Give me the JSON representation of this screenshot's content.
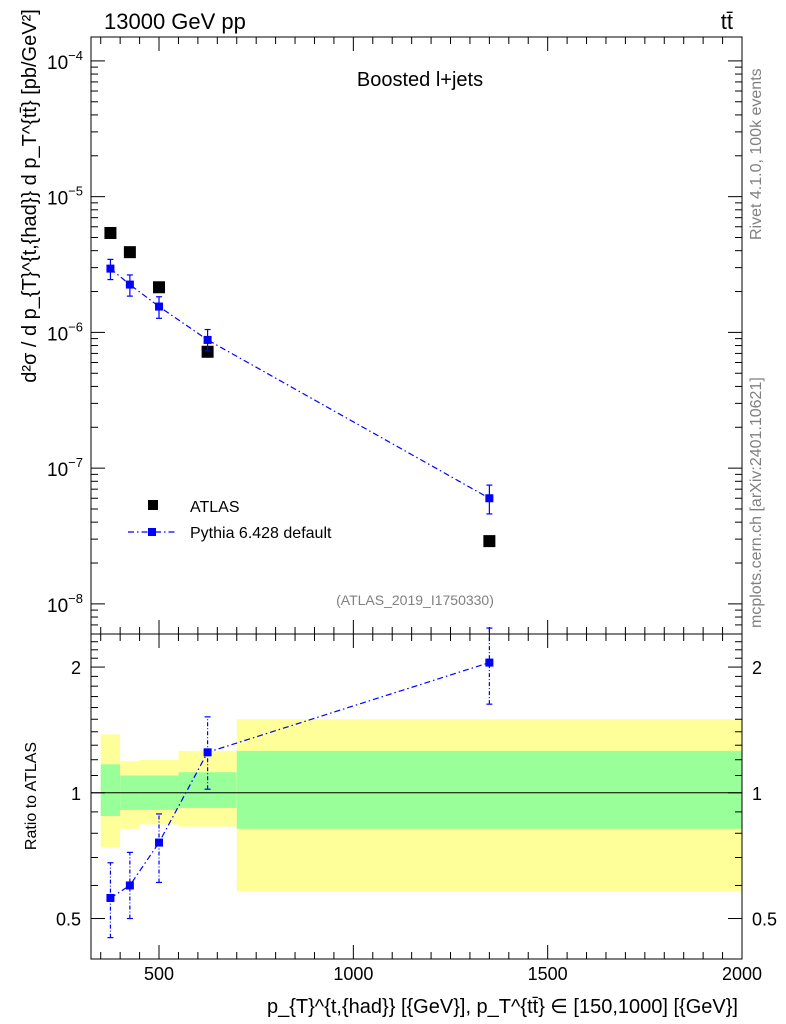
{
  "header": {
    "energy": "13000 GeV pp",
    "process": "tt̄"
  },
  "side": {
    "rivet": "Rivet 4.1.0,  100k events",
    "source": "mcplots.cern.ch [arXiv:2401.10621]"
  },
  "chart_data": [
    {
      "type": "scatter",
      "panel": "main",
      "title": "Boosted l+jets",
      "analysis": "(ATLAS_2019_I1750330)",
      "yscale": "log",
      "xlim": [
        325,
        2000
      ],
      "ylim": [
        6e-09,
        0.00015
      ],
      "ylabel": "d²σ / d p_{T}^{t,{had}} d p_T^{tt̄} [pb/GeV²]",
      "ytick_labels": [
        {
          "value": 1e-08,
          "mant": "10",
          "exp": "−8"
        },
        {
          "value": 1e-07,
          "mant": "10",
          "exp": "−7"
        },
        {
          "value": 1e-06,
          "mant": "10",
          "exp": "−6"
        },
        {
          "value": 1e-05,
          "mant": "10",
          "exp": "−5"
        },
        {
          "value": 0.0001,
          "mant": "10",
          "exp": "−4"
        }
      ],
      "series": [
        {
          "name": "ATLAS",
          "color": "#000000",
          "marker": "square",
          "x": [
            375,
            425,
            500,
            625,
            1350
          ],
          "y": [
            5.4e-06,
            3.9e-06,
            2.15e-06,
            7.2e-07,
            2.9e-08
          ]
        },
        {
          "name": "Pythia 6.428 default",
          "color": "#0000ff",
          "marker": "square",
          "line": "dashdot",
          "x": [
            375,
            425,
            500,
            625,
            1350
          ],
          "y": [
            2.95e-06,
            2.25e-06,
            1.55e-06,
            8.8e-07,
            6e-08
          ],
          "yerr_low": [
            2.45e-06,
            1.85e-06,
            1.27e-06,
            7.3e-07,
            4.6e-08
          ],
          "yerr_high": [
            3.45e-06,
            2.65e-06,
            1.83e-06,
            1.05e-06,
            7.5e-08
          ]
        }
      ]
    },
    {
      "type": "scatter",
      "panel": "ratio",
      "xlim": [
        325,
        2000
      ],
      "ylim": [
        0.4,
        2.4
      ],
      "ylabel": "Ratio to ATLAS",
      "xlabel": "p_{T}^{t,{had}} [{GeV}], p_T^{tt̄} ∈ [150,1000] [{GeV}]",
      "xticks": [
        500,
        1000,
        1500,
        2000
      ],
      "xtick_labels": [
        "500",
        "1000",
        "1500",
        "2000"
      ],
      "yticks": [
        0.5,
        1,
        2
      ],
      "ytick_labels": [
        "0.5",
        "1",
        "2"
      ],
      "bins": [
        {
          "lo": 350,
          "hi": 400,
          "stat_lo": 0.88,
          "stat_hi": 1.17,
          "tot_lo": 0.74,
          "tot_hi": 1.38
        },
        {
          "lo": 400,
          "hi": 450,
          "stat_lo": 0.91,
          "stat_hi": 1.1,
          "tot_lo": 0.82,
          "tot_hi": 1.19
        },
        {
          "lo": 450,
          "hi": 550,
          "stat_lo": 0.91,
          "stat_hi": 1.1,
          "tot_lo": 0.84,
          "tot_hi": 1.2
        },
        {
          "lo": 550,
          "hi": 700,
          "stat_lo": 0.92,
          "stat_hi": 1.12,
          "tot_lo": 0.83,
          "tot_hi": 1.26
        },
        {
          "lo": 700,
          "hi": 2000,
          "stat_lo": 0.82,
          "stat_hi": 1.26,
          "tot_lo": 0.58,
          "tot_hi": 1.5
        }
      ],
      "series": [
        {
          "name": "Pythia 6.428 default",
          "color": "#0000ff",
          "x": [
            375,
            425,
            500,
            625,
            1350
          ],
          "y": [
            0.56,
            0.6,
            0.76,
            1.25,
            2.05
          ],
          "yerr_low": [
            0.45,
            0.5,
            0.61,
            1.02,
            1.63
          ],
          "yerr_high": [
            0.68,
            0.72,
            0.89,
            1.52,
            2.48
          ]
        }
      ]
    }
  ]
}
